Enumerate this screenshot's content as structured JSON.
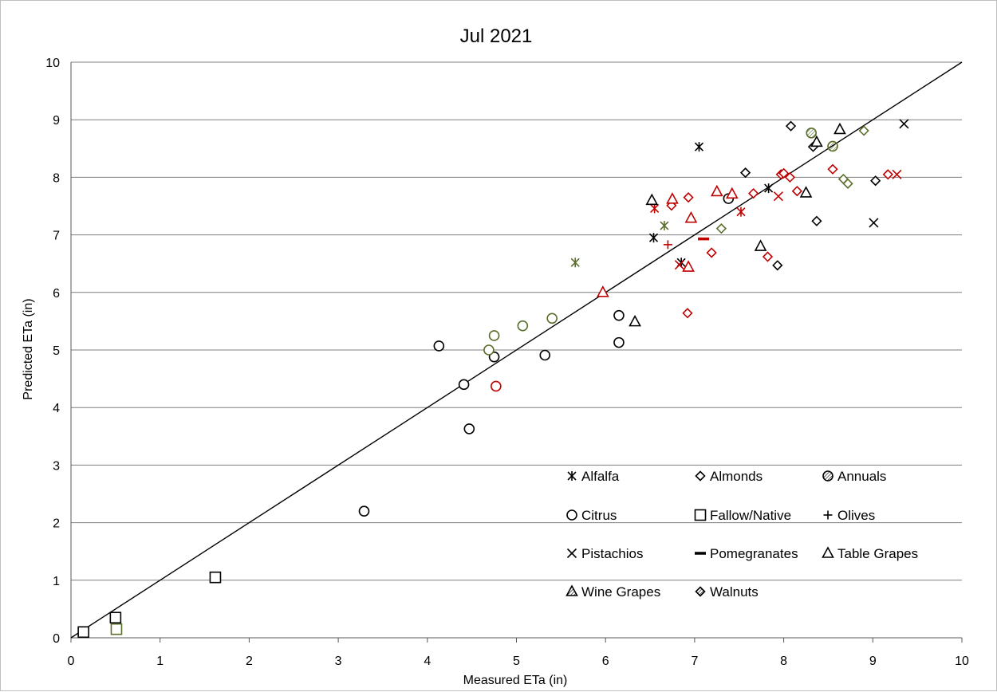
{
  "chart_data": {
    "type": "scatter",
    "title": "Jul 2021",
    "xlabel": "Measured ETa (in)",
    "ylabel": "Predicted ETa (in)",
    "xlim": [
      0,
      10
    ],
    "ylim": [
      0,
      10
    ],
    "xticks": [
      "0",
      "1",
      "2",
      "3",
      "4",
      "5",
      "6",
      "7",
      "8",
      "9",
      "10"
    ],
    "yticks": [
      "0",
      "1",
      "2",
      "3",
      "4",
      "5",
      "6",
      "7",
      "8",
      "9",
      "10"
    ],
    "grid": "horizontal",
    "reference_line": {
      "from": [
        0,
        0
      ],
      "to": [
        10,
        10
      ]
    },
    "legend_position": "bottom-right",
    "colors": {
      "black": "#000000",
      "green": "#5a6e2c",
      "red": "#c00000"
    },
    "legend": [
      {
        "name": "Alfalfa",
        "marker": "asterisk"
      },
      {
        "name": "Almonds",
        "marker": "diamond"
      },
      {
        "name": "Annuals",
        "marker": "hatched-circle"
      },
      {
        "name": "Citrus",
        "marker": "circle"
      },
      {
        "name": "Fallow/Native",
        "marker": "square"
      },
      {
        "name": "Olives",
        "marker": "plus"
      },
      {
        "name": "Pistachios",
        "marker": "x"
      },
      {
        "name": "Pomegranates",
        "marker": "dash"
      },
      {
        "name": "Table Grapes",
        "marker": "triangle"
      },
      {
        "name": "Wine Grapes",
        "marker": "hatched-triangle"
      },
      {
        "name": "Walnuts",
        "marker": "hatched-diamond"
      }
    ],
    "series": [
      {
        "name": "Alfalfa",
        "marker": "asterisk",
        "points": [
          {
            "x": 7.05,
            "y": 8.53,
            "c": "black"
          },
          {
            "x": 7.83,
            "y": 7.81,
            "c": "black"
          },
          {
            "x": 6.54,
            "y": 6.95,
            "c": "black"
          },
          {
            "x": 6.85,
            "y": 6.52,
            "c": "black"
          },
          {
            "x": 5.66,
            "y": 6.52,
            "c": "green"
          },
          {
            "x": 6.66,
            "y": 7.16,
            "c": "green"
          },
          {
            "x": 6.55,
            "y": 7.46,
            "c": "red"
          },
          {
            "x": 7.52,
            "y": 7.4,
            "c": "red"
          }
        ]
      },
      {
        "name": "Almonds",
        "marker": "diamond",
        "points": [
          {
            "x": 8.08,
            "y": 8.89,
            "c": "black"
          },
          {
            "x": 8.33,
            "y": 8.53,
            "c": "black"
          },
          {
            "x": 7.57,
            "y": 8.08,
            "c": "black"
          },
          {
            "x": 9.03,
            "y": 7.94,
            "c": "black"
          },
          {
            "x": 8.37,
            "y": 7.24,
            "c": "black"
          },
          {
            "x": 7.93,
            "y": 6.47,
            "c": "black"
          },
          {
            "x": 7.3,
            "y": 7.11,
            "c": "green"
          },
          {
            "x": 8.67,
            "y": 7.97,
            "c": "green"
          },
          {
            "x": 8.72,
            "y": 7.89,
            "c": "green"
          },
          {
            "x": 8.9,
            "y": 8.81,
            "c": "green"
          },
          {
            "x": 6.74,
            "y": 7.51,
            "c": "red"
          },
          {
            "x": 6.93,
            "y": 7.65,
            "c": "red"
          },
          {
            "x": 7.66,
            "y": 7.72,
            "c": "red"
          },
          {
            "x": 7.97,
            "y": 8.05,
            "c": "red"
          },
          {
            "x": 8.0,
            "y": 8.07,
            "c": "red"
          },
          {
            "x": 8.07,
            "y": 8.0,
            "c": "red"
          },
          {
            "x": 8.15,
            "y": 7.76,
            "c": "red"
          },
          {
            "x": 8.55,
            "y": 8.14,
            "c": "red"
          },
          {
            "x": 9.17,
            "y": 8.05,
            "c": "red"
          },
          {
            "x": 7.19,
            "y": 6.69,
            "c": "red"
          },
          {
            "x": 7.82,
            "y": 6.62,
            "c": "red"
          },
          {
            "x": 6.92,
            "y": 5.64,
            "c": "red"
          }
        ]
      },
      {
        "name": "Annuals",
        "marker": "hatched-circle",
        "points": [
          {
            "x": 8.31,
            "y": 8.77,
            "c": "green"
          },
          {
            "x": 8.55,
            "y": 8.54,
            "c": "green"
          }
        ]
      },
      {
        "name": "Citrus",
        "marker": "circle",
        "points": [
          {
            "x": 4.13,
            "y": 5.07,
            "c": "black"
          },
          {
            "x": 4.41,
            "y": 4.4,
            "c": "black"
          },
          {
            "x": 4.47,
            "y": 3.63,
            "c": "black"
          },
          {
            "x": 4.75,
            "y": 4.88,
            "c": "black"
          },
          {
            "x": 5.32,
            "y": 4.91,
            "c": "black"
          },
          {
            "x": 6.15,
            "y": 5.6,
            "c": "black"
          },
          {
            "x": 6.15,
            "y": 5.13,
            "c": "black"
          },
          {
            "x": 7.38,
            "y": 7.63,
            "c": "black"
          },
          {
            "x": 3.29,
            "y": 2.2,
            "c": "black"
          },
          {
            "x": 4.69,
            "y": 5.0,
            "c": "green"
          },
          {
            "x": 4.75,
            "y": 5.25,
            "c": "green"
          },
          {
            "x": 5.07,
            "y": 5.42,
            "c": "green"
          },
          {
            "x": 5.4,
            "y": 5.55,
            "c": "green"
          },
          {
            "x": 4.77,
            "y": 4.37,
            "c": "red"
          }
        ]
      },
      {
        "name": "Fallow/Native",
        "marker": "square",
        "points": [
          {
            "x": 0.14,
            "y": 0.1,
            "c": "black"
          },
          {
            "x": 0.5,
            "y": 0.35,
            "c": "black"
          },
          {
            "x": 1.62,
            "y": 1.05,
            "c": "black"
          },
          {
            "x": 0.51,
            "y": 0.15,
            "c": "green"
          }
        ]
      },
      {
        "name": "Olives",
        "marker": "plus",
        "points": [
          {
            "x": 6.7,
            "y": 6.83,
            "c": "red"
          }
        ]
      },
      {
        "name": "Pistachios",
        "marker": "x",
        "points": [
          {
            "x": 9.35,
            "y": 8.93,
            "c": "black"
          },
          {
            "x": 9.01,
            "y": 7.21,
            "c": "black"
          },
          {
            "x": 7.94,
            "y": 7.67,
            "c": "red"
          },
          {
            "x": 9.27,
            "y": 8.05,
            "c": "red"
          },
          {
            "x": 6.83,
            "y": 6.48,
            "c": "red"
          }
        ]
      },
      {
        "name": "Pomegranates",
        "marker": "dash",
        "points": [
          {
            "x": 7.1,
            "y": 6.93,
            "c": "red"
          }
        ]
      },
      {
        "name": "Table Grapes",
        "marker": "triangle",
        "points": [
          {
            "x": 6.52,
            "y": 7.6,
            "c": "black"
          },
          {
            "x": 6.33,
            "y": 5.49,
            "c": "black"
          },
          {
            "x": 7.74,
            "y": 6.8,
            "c": "black"
          },
          {
            "x": 8.25,
            "y": 7.73,
            "c": "black"
          },
          {
            "x": 8.37,
            "y": 8.61,
            "c": "black"
          },
          {
            "x": 8.63,
            "y": 8.83,
            "c": "black"
          },
          {
            "x": 5.97,
            "y": 6.0,
            "c": "red"
          },
          {
            "x": 6.75,
            "y": 7.62,
            "c": "red"
          },
          {
            "x": 6.96,
            "y": 7.29,
            "c": "red"
          },
          {
            "x": 7.25,
            "y": 7.75,
            "c": "red"
          },
          {
            "x": 7.42,
            "y": 7.71,
            "c": "red"
          },
          {
            "x": 6.93,
            "y": 6.44,
            "c": "red"
          }
        ]
      }
    ]
  }
}
